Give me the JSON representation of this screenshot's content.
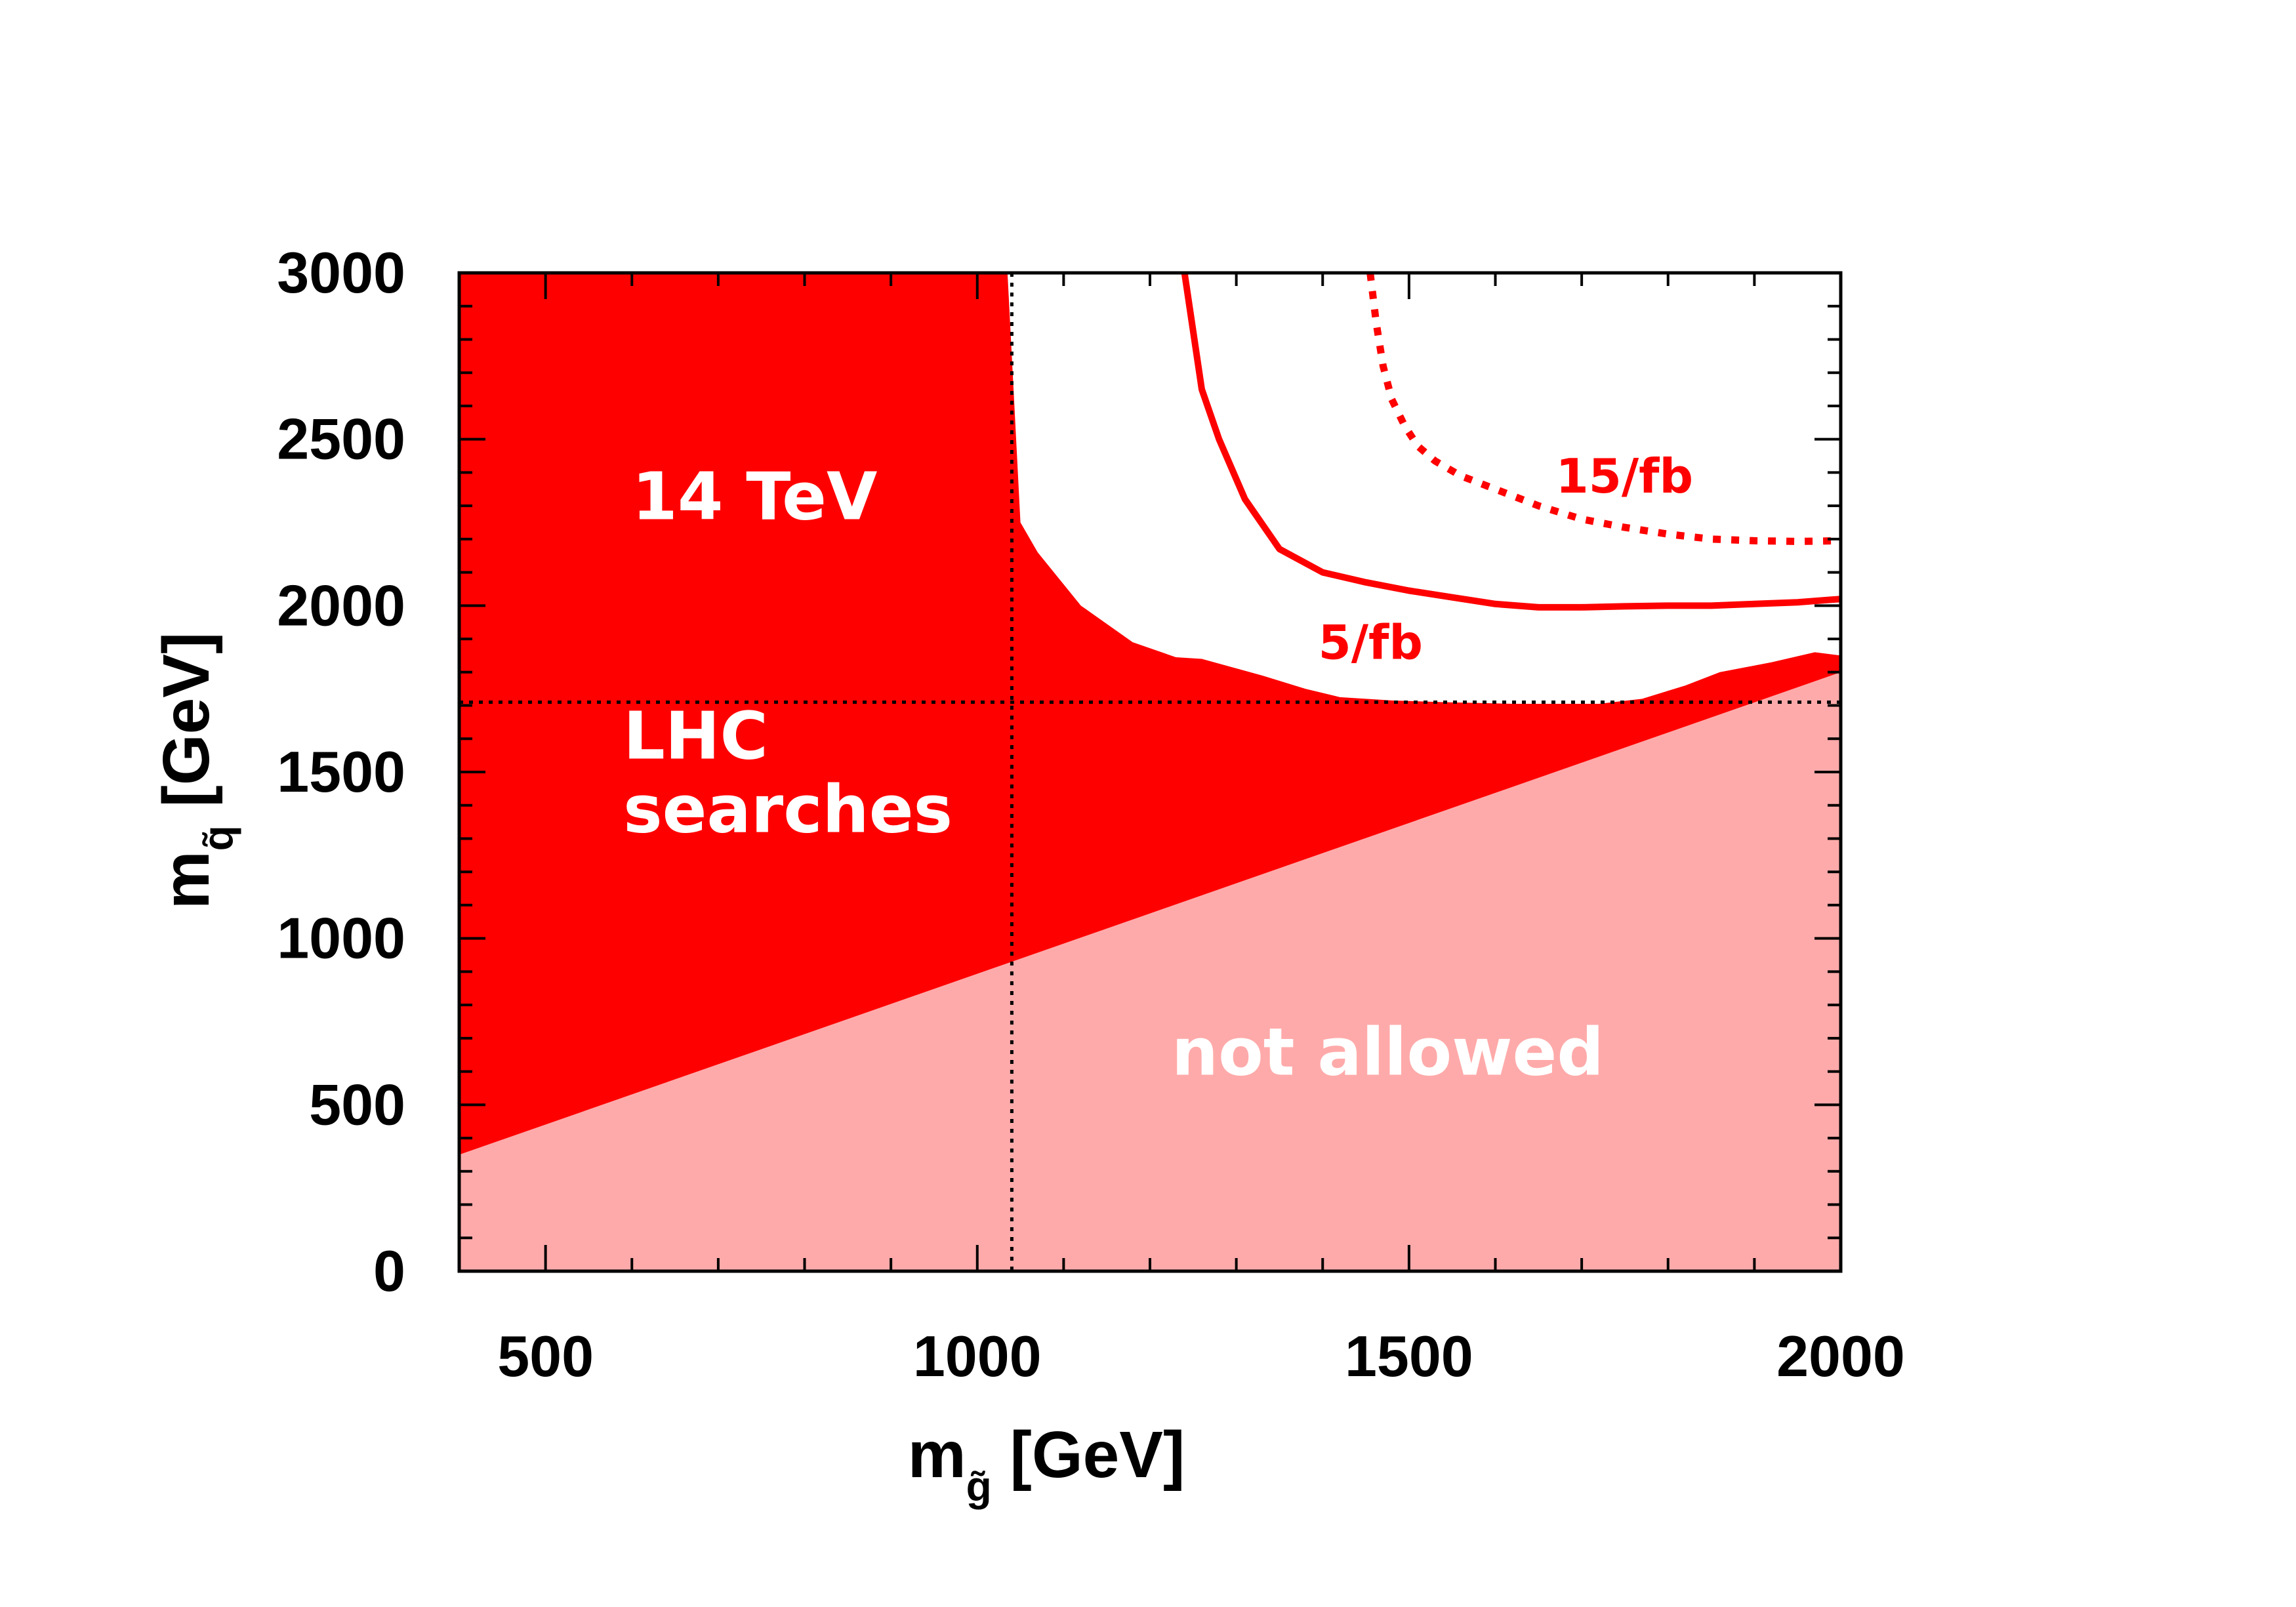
{
  "chart_data": {
    "type": "area",
    "title": "",
    "xlabel": {
      "main": "m",
      "sub": "g̃",
      "unit": " [GeV]"
    },
    "ylabel": {
      "main": "m",
      "sub": "q̃",
      "unit": " [GeV]"
    },
    "xlim": [
      400,
      2000
    ],
    "ylim": [
      0,
      3000
    ],
    "xticks": [
      500,
      1000,
      1500,
      2000
    ],
    "yticks": [
      0,
      500,
      1000,
      1500,
      2000,
      2500,
      3000
    ],
    "xtick_labels": [
      "500",
      "1000",
      "1500",
      "2000"
    ],
    "ytick_labels": [
      "0",
      "500",
      "1000",
      "1500",
      "2000",
      "2500",
      "3000"
    ],
    "colors": {
      "excluded": "#ff0000",
      "not_allowed": "#ffaaaa",
      "curve": "#ff0000",
      "frame": "#000000"
    },
    "regions": [
      {
        "name": "not allowed",
        "label": "not allowed",
        "boundary": [
          [
            400,
            350
          ],
          [
            2000,
            1800
          ]
        ]
      },
      {
        "name": "LHC searches excluded",
        "boundary": [
          [
            1035,
            3000
          ],
          [
            1050,
            2250
          ],
          [
            1070,
            2160
          ],
          [
            1120,
            2000
          ],
          [
            1180,
            1890
          ],
          [
            1230,
            1845
          ],
          [
            1260,
            1840
          ],
          [
            1330,
            1790
          ],
          [
            1380,
            1750
          ],
          [
            1420,
            1725
          ],
          [
            1480,
            1715
          ],
          [
            1540,
            1710
          ],
          [
            1620,
            1705
          ],
          [
            1720,
            1705
          ],
          [
            1770,
            1720
          ],
          [
            1820,
            1760
          ],
          [
            1860,
            1800
          ],
          [
            1920,
            1830
          ],
          [
            1970,
            1860
          ],
          [
            2000,
            1850
          ]
        ]
      }
    ],
    "series": [
      {
        "name": "5/fb",
        "style": "solid",
        "x": [
          1240,
          1260,
          1280,
          1310,
          1350,
          1400,
          1450,
          1500,
          1550,
          1600,
          1650,
          1700,
          1750,
          1800,
          1850,
          1900,
          1950,
          2000
        ],
        "y": [
          3000,
          2650,
          2500,
          2320,
          2170,
          2100,
          2070,
          2045,
          2025,
          2005,
          1995,
          1995,
          1998,
          2000,
          2000,
          2005,
          2010,
          2020
        ]
      },
      {
        "name": "15/fb",
        "style": "dotted",
        "x": [
          1455,
          1462,
          1470,
          1480,
          1495,
          1510,
          1530,
          1560,
          1600,
          1650,
          1700,
          1750,
          1800,
          1850,
          1900,
          1950,
          2000
        ],
        "y": [
          3000,
          2850,
          2720,
          2620,
          2540,
          2480,
          2435,
          2390,
          2350,
          2300,
          2260,
          2235,
          2215,
          2200,
          2195,
          2193,
          2195
        ]
      }
    ],
    "reference_lines": [
      {
        "orientation": "vertical",
        "value": 1040,
        "style": "dotted"
      },
      {
        "orientation": "horizontal",
        "value": 1710,
        "style": "dotted"
      }
    ],
    "annotations": [
      {
        "text": "14 TeV",
        "x": 600,
        "y": 2260,
        "style": "region"
      },
      {
        "text": "LHC",
        "x": 590,
        "y": 1540,
        "style": "region"
      },
      {
        "text": "searches",
        "x": 590,
        "y": 1320,
        "style": "region"
      },
      {
        "text": "not allowed",
        "x": 1225,
        "y": 590,
        "style": "region"
      },
      {
        "text": "5/fb",
        "x": 1395,
        "y": 1840,
        "style": "curve"
      },
      {
        "text": "15/fb",
        "x": 1670,
        "y": 2340,
        "style": "curve"
      }
    ],
    "grid": false,
    "legend": "none"
  }
}
